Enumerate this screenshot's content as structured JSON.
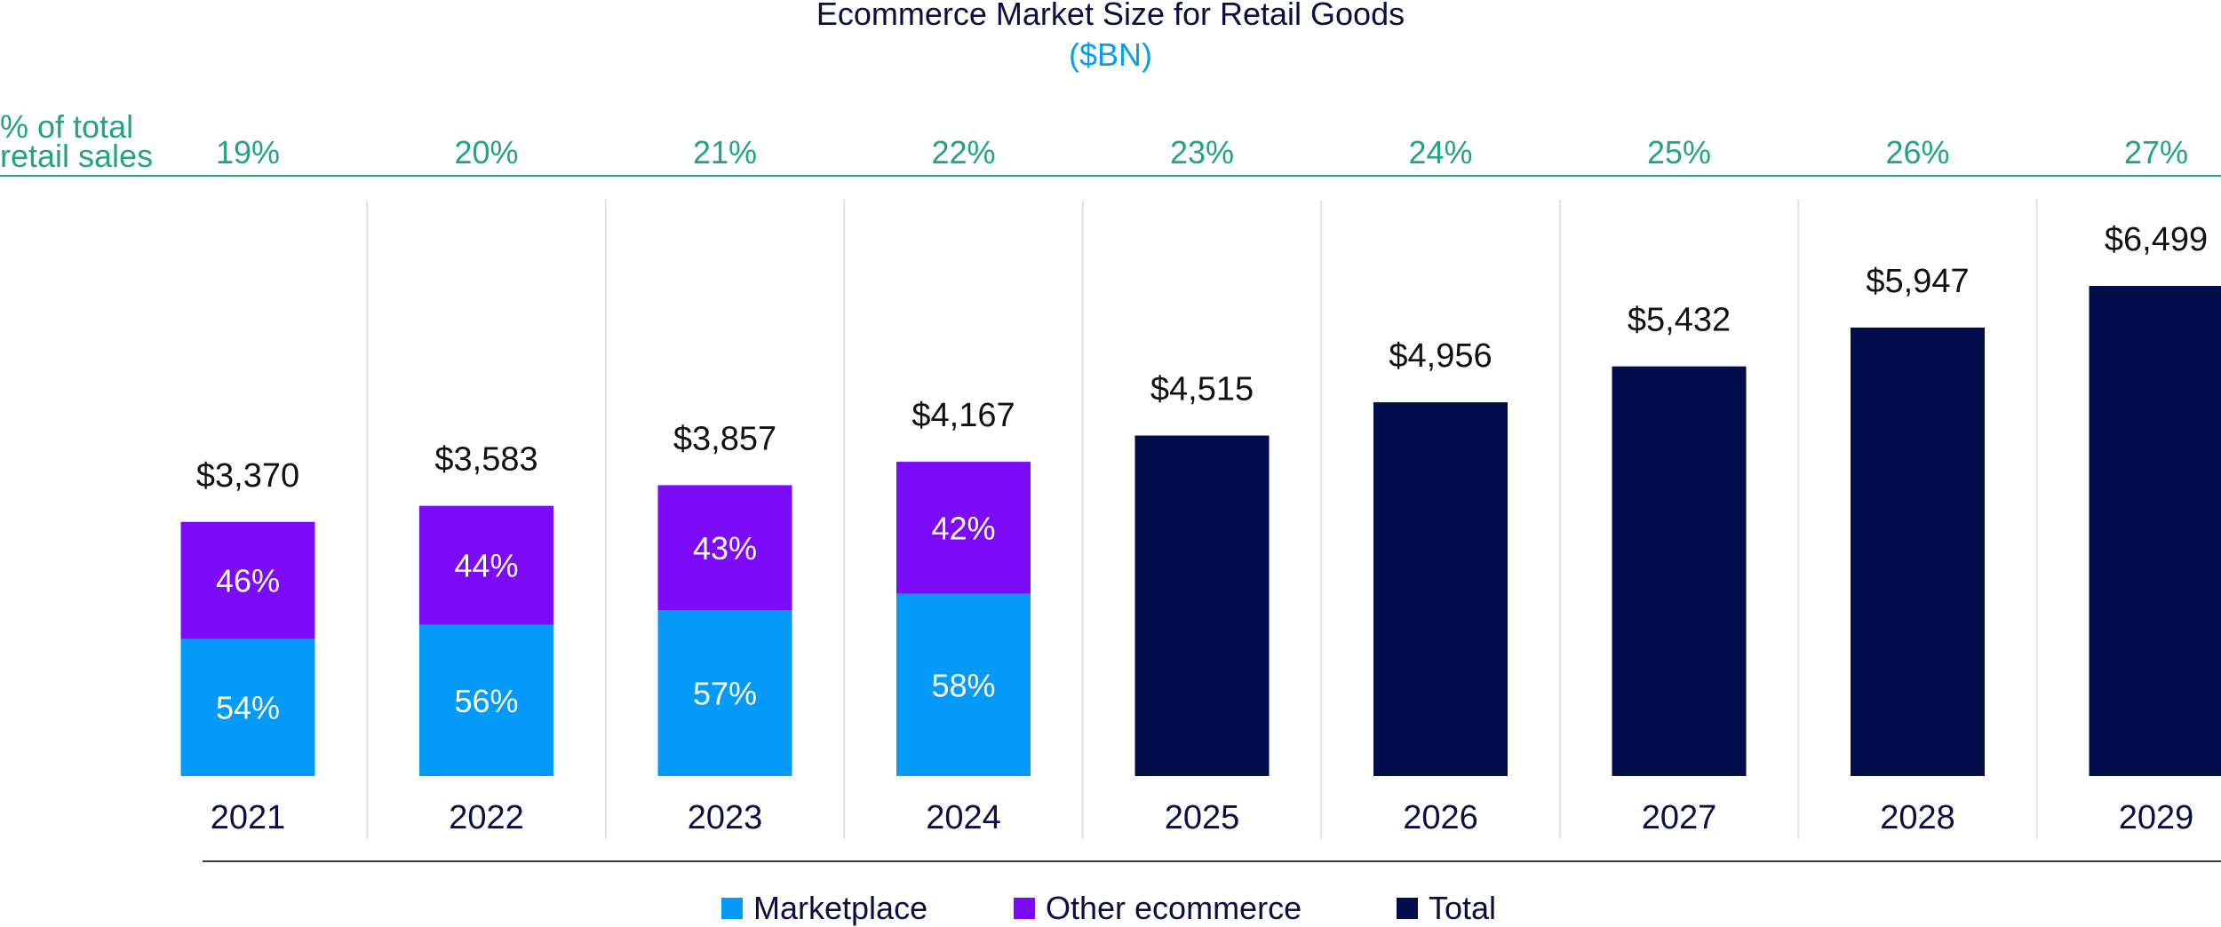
{
  "chart_data": {
    "type": "bar",
    "title": "Ecommerce Market Size for Retail Goods",
    "subtitle": "($BN)",
    "row_label": [
      "% of total",
      "retail sales"
    ],
    "categories": [
      "2021",
      "2022",
      "2023",
      "2024",
      "2025",
      "2026",
      "2027",
      "2028",
      "2029"
    ],
    "totals": [
      3370,
      3583,
      3857,
      4167,
      4515,
      4956,
      5432,
      5947,
      6499
    ],
    "total_labels": [
      "$3,370",
      "$3,583",
      "$3,857",
      "$4,167",
      "$4,515",
      "$4,956",
      "$5,432",
      "$5,947",
      "$6,499"
    ],
    "pct_of_total_retail": [
      "19%",
      "20%",
      "21%",
      "22%",
      "23%",
      "24%",
      "25%",
      "26%",
      "27%"
    ],
    "series": [
      {
        "name": "Marketplace",
        "share_pct": [
          54,
          56,
          57,
          58,
          null,
          null,
          null,
          null,
          null
        ],
        "labels": [
          "54%",
          "56%",
          "57%",
          "58%",
          "",
          "",
          "",
          "",
          ""
        ]
      },
      {
        "name": "Other ecommerce",
        "share_pct": [
          46,
          44,
          43,
          42,
          null,
          null,
          null,
          null,
          null
        ],
        "labels": [
          "46%",
          "44%",
          "43%",
          "42%",
          "",
          "",
          "",
          "",
          ""
        ]
      },
      {
        "name": "Total",
        "values": [
          null,
          null,
          null,
          null,
          4515,
          4956,
          5432,
          5947,
          6499
        ]
      }
    ],
    "ylim": [
      0,
      7000
    ],
    "legend_position": "bottom-center"
  },
  "colors": {
    "marketplace": "#039af9",
    "other": "#7b0bf9",
    "total": "#020d4b",
    "pct_text": "#21a385",
    "subtitle": "#0b9cf3",
    "text": "#0b0e45",
    "gridline": "#e2e3ea",
    "axis": "#37374f"
  },
  "legend": {
    "marketplace_label": "Marketplace",
    "other_label": "Other ecommerce",
    "total_label": "Total"
  }
}
